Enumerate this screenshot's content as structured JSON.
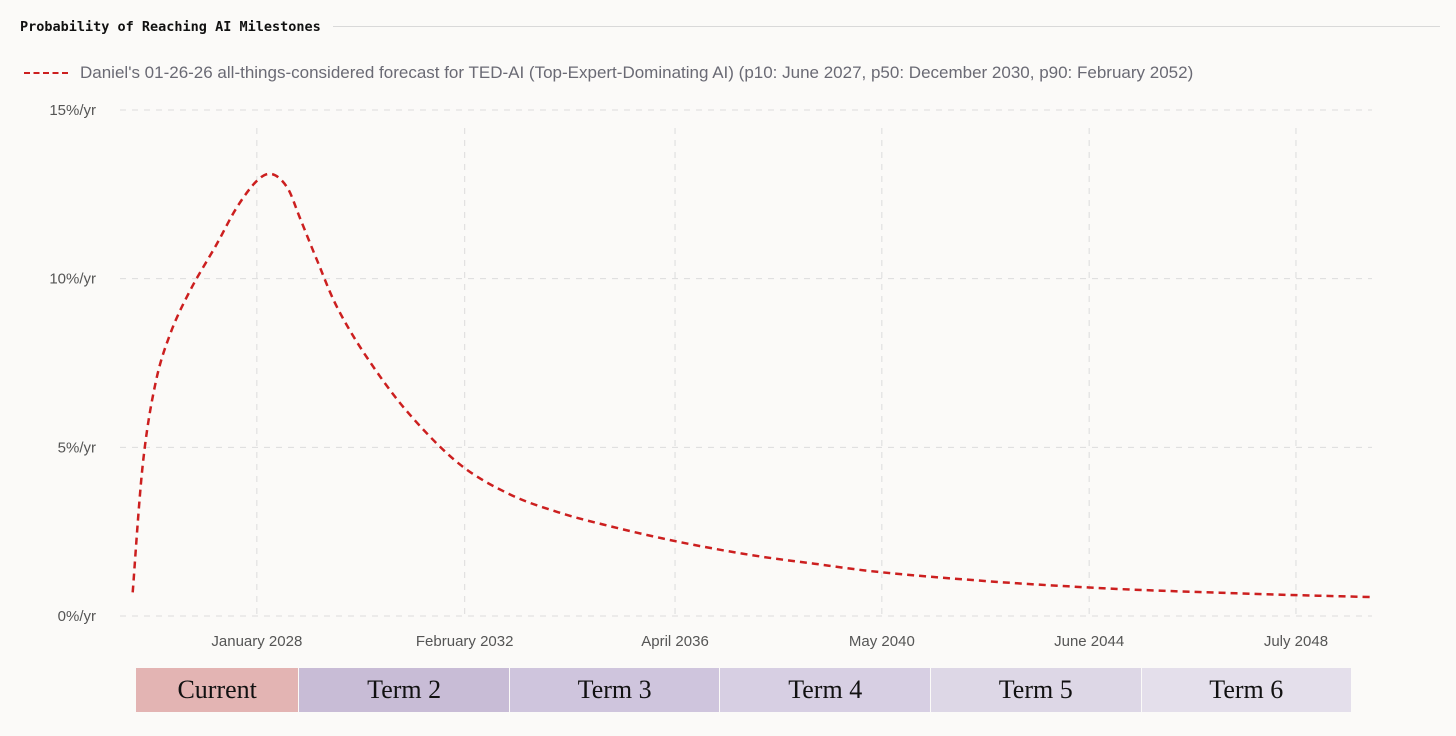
{
  "header": {
    "title": "Probability of Reaching AI Milestones"
  },
  "legend": {
    "label": "Daniel's 01-26-26 all-things-considered forecast for TED-AI (Top-Expert-Dominating AI) (p10: June 2027, p50: December 2030, p90: February 2052)",
    "color": "#cc1f1f"
  },
  "chart_data": {
    "type": "line",
    "title": "Probability of Reaching AI Milestones",
    "xlabel": "",
    "ylabel": "",
    "x_unit": "year",
    "xlim": [
      2025.3,
      2050.0
    ],
    "ylim": [
      0,
      15
    ],
    "y_ticks": [
      {
        "value": 0,
        "label": "0%/yr"
      },
      {
        "value": 5,
        "label": "5%/yr"
      },
      {
        "value": 10,
        "label": "10%/yr"
      },
      {
        "value": 15,
        "label": "15%/yr"
      }
    ],
    "x_ticks": [
      {
        "value": 2028.0,
        "label": "January 2028"
      },
      {
        "value": 2032.1,
        "label": "February 2032"
      },
      {
        "value": 2036.25,
        "label": "April 2036"
      },
      {
        "value": 2040.33,
        "label": "May 2040"
      },
      {
        "value": 2044.42,
        "label": "June 2044"
      },
      {
        "value": 2048.5,
        "label": "July 2048"
      }
    ],
    "grid": true,
    "series": [
      {
        "name": "Daniel's 01-26-26 all-things-considered forecast for TED-AI (Top-Expert-Dominating AI) (p10: June 2027, p50: December 2030, p90: February 2052)",
        "color": "#cc1f1f",
        "style": "dashed",
        "x": [
          2025.55,
          2025.75,
          2026.0,
          2026.3,
          2026.7,
          2027.2,
          2027.6,
          2028.0,
          2028.3,
          2028.6,
          2028.85,
          2029.2,
          2029.6,
          2030.2,
          2031.0,
          2032.0,
          2033.0,
          2034.0,
          2035.0,
          2036.0,
          2037.0,
          2038.0,
          2039.0,
          2040.0,
          2041.0,
          2042.0,
          2043.0,
          2044.0,
          2045.0,
          2046.0,
          2047.0,
          2048.0,
          2049.0,
          2050.0
        ],
        "values": [
          0.7,
          4.5,
          6.9,
          8.4,
          9.7,
          11.0,
          12.1,
          12.9,
          13.1,
          12.7,
          11.8,
          10.5,
          9.1,
          7.6,
          6.0,
          4.5,
          3.6,
          3.05,
          2.65,
          2.3,
          2.0,
          1.75,
          1.55,
          1.35,
          1.2,
          1.08,
          0.97,
          0.88,
          0.8,
          0.74,
          0.69,
          0.64,
          0.6,
          0.56
        ]
      }
    ]
  },
  "terms": [
    {
      "label": "Current",
      "start": 2025.3,
      "end": 2028.4,
      "color": "#e3b4b3"
    },
    {
      "label": "Term 2",
      "start": 2028.4,
      "end": 2032.4,
      "color": "#c8bcd6"
    },
    {
      "label": "Term 3",
      "start": 2032.4,
      "end": 2036.4,
      "color": "#cfc5dd"
    },
    {
      "label": "Term 4",
      "start": 2036.4,
      "end": 2040.4,
      "color": "#d7cfe3"
    },
    {
      "label": "Term 5",
      "start": 2040.4,
      "end": 2044.4,
      "color": "#ddd7e6"
    },
    {
      "label": "Term 6",
      "start": 2044.4,
      "end": 2048.4,
      "color": "#e4dfeb"
    }
  ]
}
